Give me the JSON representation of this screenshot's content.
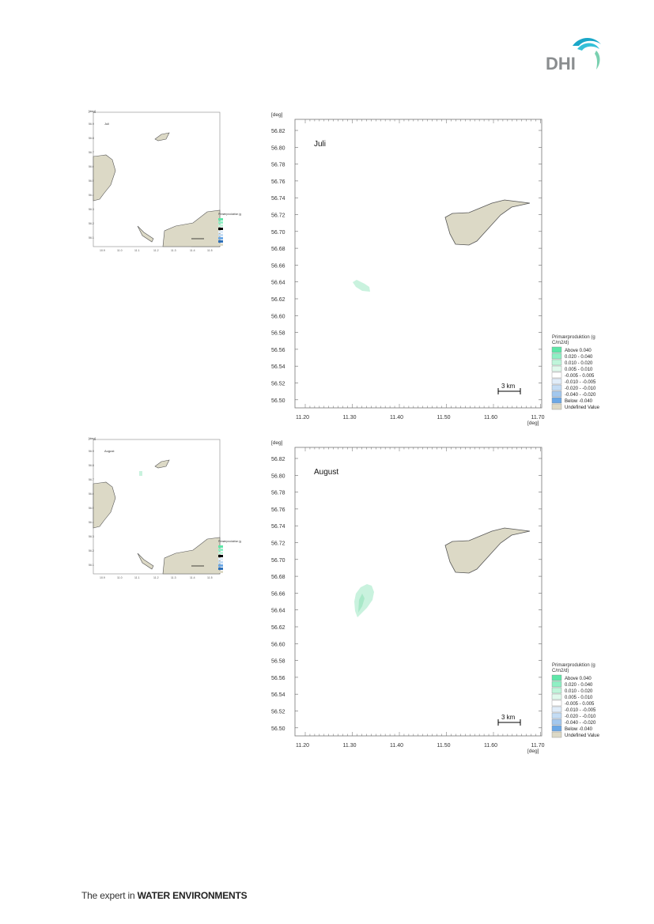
{
  "header": {
    "logo_text": "DHI"
  },
  "footer": {
    "prefix": "The expert in",
    "bold": "WATER ENVIRONMENTS"
  },
  "colors": {
    "land": "#dcd9c6",
    "land_stroke": "#555555",
    "bloom": "#c9f2de",
    "bloom_dark": "#a8e8c8"
  },
  "maps": [
    {
      "id": "juli",
      "label": "Juli",
      "unit_label": "[deg]",
      "y_ticks": [
        "56.82",
        "56.80",
        "56.78",
        "56.76",
        "56.74",
        "56.72",
        "56.70",
        "56.68",
        "56.66",
        "56.64",
        "56.62",
        "56.60",
        "56.58",
        "56.56",
        "56.54",
        "56.52",
        "56.50"
      ],
      "x_ticks": [
        "11.20",
        "11.30",
        "11.40",
        "11.50",
        "11.60",
        "11.70"
      ],
      "scale": "3 km",
      "legend_title": "Primærproduktion (g C/m2/d)",
      "legend": [
        {
          "name": "Above",
          "value": "0.040",
          "color": "#5ee6a8"
        },
        {
          "name": "",
          "value": "0.020 -  0.040",
          "color": "#8ff0c4"
        },
        {
          "name": "",
          "value": "0.010 -  0.020",
          "color": "#bff5da"
        },
        {
          "name": "",
          "value": "0.005 -  0.010",
          "color": "#e0f9ec"
        },
        {
          "name": "",
          "value": "-0.005 -  0.005",
          "color": "#ffffff"
        },
        {
          "name": "",
          "value": "-0.010 - -0.005",
          "color": "#e1edf9"
        },
        {
          "name": "",
          "value": "-0.020 - -0.010",
          "color": "#c4dcf4"
        },
        {
          "name": "",
          "value": "-0.040 - -0.020",
          "color": "#a3c8ee"
        },
        {
          "name": "Below",
          "value": "-0.040",
          "color": "#6ba8e6"
        },
        {
          "name": "Undefined Value",
          "value": "",
          "color": "#dcd9c6"
        }
      ]
    },
    {
      "id": "august",
      "label": "August",
      "unit_label": "[deg]",
      "y_ticks": [
        "56.82",
        "56.80",
        "56.78",
        "56.76",
        "56.74",
        "56.72",
        "56.70",
        "56.68",
        "56.66",
        "56.64",
        "56.62",
        "56.60",
        "56.58",
        "56.56",
        "56.54",
        "56.52",
        "56.50"
      ],
      "x_ticks": [
        "11.20",
        "11.30",
        "11.40",
        "11.50",
        "11.60",
        "11.70"
      ],
      "scale": "3 km",
      "legend_title": "Primærproduktion (g C/m2/d)",
      "legend": [
        {
          "name": "Above",
          "value": "0.040",
          "color": "#5ee6a8"
        },
        {
          "name": "",
          "value": "0.020 -  0.040",
          "color": "#8ff0c4"
        },
        {
          "name": "",
          "value": "0.010 -  0.020",
          "color": "#bff5da"
        },
        {
          "name": "",
          "value": "0.005 -  0.010",
          "color": "#e0f9ec"
        },
        {
          "name": "",
          "value": "-0.005 -  0.005",
          "color": "#ffffff"
        },
        {
          "name": "",
          "value": "-0.010 - -0.005",
          "color": "#e1edf9"
        },
        {
          "name": "",
          "value": "-0.020 - -0.010",
          "color": "#c4dcf4"
        },
        {
          "name": "",
          "value": "-0.040 - -0.020",
          "color": "#a3c8ee"
        },
        {
          "name": "Below",
          "value": "-0.040",
          "color": "#6ba8e6"
        },
        {
          "name": "Undefined Value",
          "value": "",
          "color": "#dcd9c6"
        }
      ]
    }
  ]
}
